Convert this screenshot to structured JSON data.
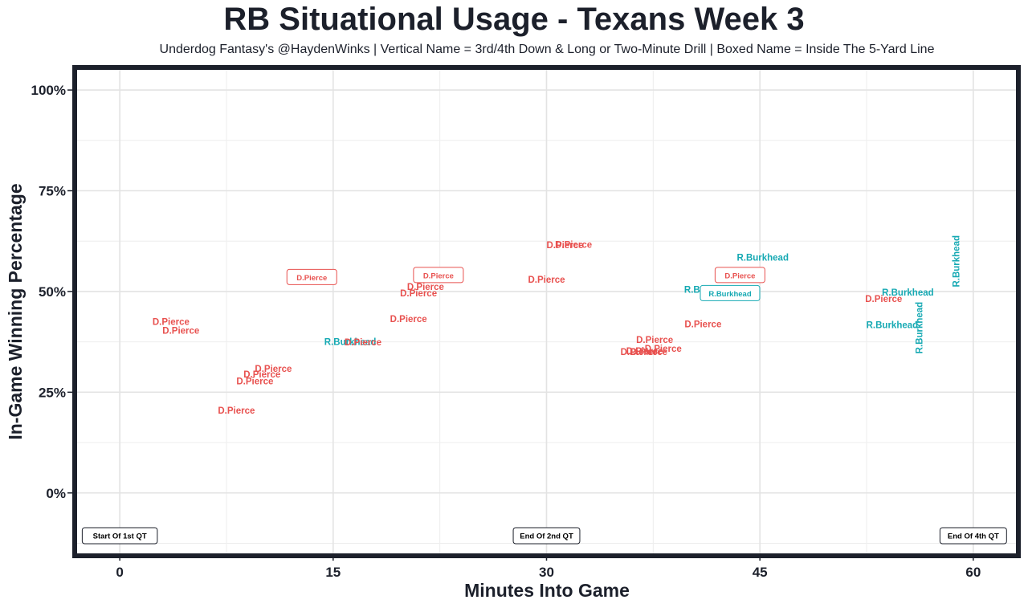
{
  "title": "RB Situational Usage - Texans Week 3",
  "subtitle": "Underdog Fantasy's @HaydenWinks | Vertical Name = 3rd/4th Down & Long or Two-Minute Drill | Boxed Name = Inside The 5-Yard Line",
  "colors": {
    "D.Pierce": "#e8514f",
    "R.Burkhead": "#16a9b3",
    "frame": "#1c202b",
    "grid": "#e6e6e6"
  },
  "chart_data": {
    "type": "scatter",
    "xlabel": "Minutes Into Game",
    "ylabel": "In-Game Winning Percentage",
    "xlim": [
      -3,
      63
    ],
    "ylim": [
      -15,
      105
    ],
    "x_ticks": [
      0,
      15,
      30,
      45,
      60
    ],
    "x_tick_labels": [
      "0",
      "15",
      "30",
      "45",
      "60"
    ],
    "y_ticks": [
      0,
      25,
      50,
      75,
      100
    ],
    "y_tick_labels": [
      "0%",
      "25%",
      "50%",
      "75%",
      "100%"
    ],
    "grid": true,
    "markers": [
      {
        "x": 0,
        "label": "Start Of 1st QT"
      },
      {
        "x": 30,
        "label": "End Of 2nd QT"
      },
      {
        "x": 60,
        "label": "End Of 4th QT"
      }
    ],
    "points": [
      {
        "player": "D.Pierce",
        "x": 3.6,
        "y": 42.5,
        "style": "normal"
      },
      {
        "player": "D.Pierce",
        "x": 4.3,
        "y": 40.3,
        "style": "normal"
      },
      {
        "player": "D.Pierce",
        "x": 8.2,
        "y": 20.5,
        "style": "normal"
      },
      {
        "player": "D.Pierce",
        "x": 9.5,
        "y": 27.8,
        "style": "normal"
      },
      {
        "player": "D.Pierce",
        "x": 10.0,
        "y": 29.5,
        "style": "normal"
      },
      {
        "player": "D.Pierce",
        "x": 10.8,
        "y": 30.8,
        "style": "normal"
      },
      {
        "player": "D.Pierce",
        "x": 13.5,
        "y": 53.5,
        "style": "boxed"
      },
      {
        "player": "R.Burkhead",
        "x": 16.2,
        "y": 37.5,
        "style": "normal"
      },
      {
        "player": "D.Pierce",
        "x": 17.1,
        "y": 37.4,
        "style": "normal"
      },
      {
        "player": "D.Pierce",
        "x": 20.3,
        "y": 43.2,
        "style": "normal"
      },
      {
        "player": "D.Pierce",
        "x": 21.0,
        "y": 49.6,
        "style": "normal"
      },
      {
        "player": "D.Pierce",
        "x": 21.5,
        "y": 51.2,
        "style": "normal"
      },
      {
        "player": "D.Pierce",
        "x": 22.4,
        "y": 54.0,
        "style": "boxed"
      },
      {
        "player": "D.Pierce",
        "x": 30.0,
        "y": 53.0,
        "style": "normal"
      },
      {
        "player": "D.Pierce",
        "x": 31.3,
        "y": 61.5,
        "style": "normal"
      },
      {
        "player": "D.Pierce",
        "x": 31.9,
        "y": 61.6,
        "style": "normal"
      },
      {
        "player": "D.Pierce",
        "x": 36.5,
        "y": 35.0,
        "style": "normal"
      },
      {
        "player": "D.Pierce",
        "x": 36.9,
        "y": 35.2,
        "style": "normal"
      },
      {
        "player": "D.Pierce",
        "x": 37.2,
        "y": 35.0,
        "style": "normal"
      },
      {
        "player": "D.Pierce",
        "x": 37.6,
        "y": 38.0,
        "style": "normal"
      },
      {
        "player": "D.Pierce",
        "x": 38.2,
        "y": 35.8,
        "style": "normal"
      },
      {
        "player": "D.Pierce",
        "x": 41.0,
        "y": 41.9,
        "style": "normal"
      },
      {
        "player": "R.Burkhead",
        "x": 41.5,
        "y": 50.5,
        "style": "normal"
      },
      {
        "player": "R.Burkhead",
        "x": 42.9,
        "y": 49.5,
        "style": "boxed"
      },
      {
        "player": "D.Pierce",
        "x": 43.6,
        "y": 54.0,
        "style": "boxed"
      },
      {
        "player": "R.Burkhead",
        "x": 45.2,
        "y": 58.5,
        "style": "normal"
      },
      {
        "player": "D.Pierce",
        "x": 53.7,
        "y": 48.2,
        "style": "normal"
      },
      {
        "player": "R.Burkhead",
        "x": 54.3,
        "y": 41.7,
        "style": "normal"
      },
      {
        "player": "R.Burkhead",
        "x": 55.4,
        "y": 49.8,
        "style": "normal"
      },
      {
        "player": "R.Burkhead",
        "x": 56.2,
        "y": 41.0,
        "style": "vertical"
      },
      {
        "player": "R.Burkhead",
        "x": 58.8,
        "y": 57.5,
        "style": "vertical"
      }
    ]
  }
}
